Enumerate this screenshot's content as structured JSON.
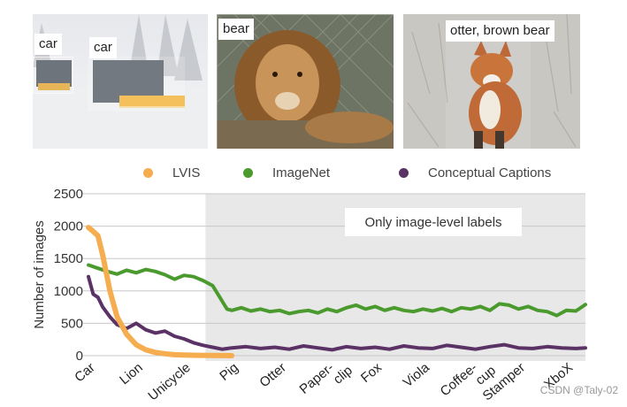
{
  "images": [
    {
      "id": "car",
      "labels": [
        "car",
        "car"
      ]
    },
    {
      "id": "bear",
      "labels": [
        "bear"
      ]
    },
    {
      "id": "otter",
      "labels": [
        "otter, brown bear"
      ]
    }
  ],
  "legend": [
    {
      "label": "LVIS",
      "color": "#f6ad50"
    },
    {
      "label": "ImageNet",
      "color": "#4a9a2e"
    },
    {
      "label": "Conceptual Captions",
      "color": "#5a3266"
    }
  ],
  "chart_data": {
    "type": "line",
    "ylabel": "Number of images",
    "ylim": [
      0,
      2500
    ],
    "yticks": [
      0,
      500,
      1000,
      1500,
      2000,
      2500
    ],
    "categories": [
      "Car",
      "Lion",
      "Unicycle",
      "Pig",
      "Otter",
      "Paper-\nclip",
      "Fox",
      "Viola",
      "Coffee-\ncup",
      "Stamper",
      "XboX"
    ],
    "shaded_region": {
      "from_category": "Pig",
      "label": "Only image-level labels",
      "color": "#e8e8e8"
    },
    "grid": true,
    "series": [
      {
        "name": "LVIS",
        "color": "#f6ad50",
        "x": [
          0,
          0.1,
          0.2,
          0.3,
          0.45,
          0.6,
          0.8,
          1.0,
          1.2,
          1.4,
          1.6,
          1.8,
          2.0,
          2.3,
          2.6,
          2.9,
          3.0
        ],
        "y": [
          1980,
          1920,
          1850,
          1550,
          1000,
          600,
          330,
          170,
          90,
          50,
          30,
          15,
          10,
          5,
          3,
          1,
          0
        ]
      },
      {
        "name": "ImageNet",
        "color": "#4a9a2e",
        "x": [
          0,
          0.2,
          0.4,
          0.6,
          0.8,
          1.0,
          1.2,
          1.4,
          1.6,
          1.8,
          2.0,
          2.2,
          2.4,
          2.6,
          2.75,
          2.9,
          3.0,
          3.2,
          3.4,
          3.6,
          3.8,
          4.0,
          4.2,
          4.4,
          4.6,
          4.8,
          5.0,
          5.2,
          5.4,
          5.6,
          5.8,
          6.0,
          6.2,
          6.4,
          6.6,
          6.8,
          7.0,
          7.2,
          7.4,
          7.6,
          7.8,
          8.0,
          8.2,
          8.4,
          8.6,
          8.8,
          9.0,
          9.2,
          9.4,
          9.6,
          9.8,
          10.0,
          10.2,
          10.4
        ],
        "y": [
          1400,
          1350,
          1300,
          1260,
          1320,
          1280,
          1330,
          1300,
          1250,
          1180,
          1240,
          1220,
          1160,
          1080,
          900,
          720,
          700,
          740,
          690,
          720,
          680,
          700,
          650,
          680,
          700,
          660,
          720,
          680,
          740,
          780,
          720,
          760,
          700,
          740,
          700,
          680,
          720,
          690,
          730,
          680,
          740,
          720,
          760,
          700,
          800,
          780,
          720,
          760,
          700,
          680,
          620,
          700,
          690,
          790
        ]
      },
      {
        "name": "Conceptual Captions",
        "color": "#5a3266",
        "x": [
          0,
          0.1,
          0.2,
          0.3,
          0.45,
          0.6,
          0.8,
          1.0,
          1.2,
          1.4,
          1.6,
          1.8,
          2.0,
          2.2,
          2.4,
          2.6,
          2.8,
          3.0,
          3.3,
          3.6,
          3.9,
          4.2,
          4.5,
          4.8,
          5.1,
          5.4,
          5.7,
          6.0,
          6.3,
          6.6,
          6.9,
          7.2,
          7.5,
          7.8,
          8.1,
          8.4,
          8.7,
          9.0,
          9.3,
          9.6,
          9.9,
          10.2,
          10.4
        ],
        "y": [
          1220,
          950,
          900,
          750,
          600,
          480,
          420,
          500,
          400,
          350,
          380,
          300,
          260,
          200,
          160,
          130,
          100,
          120,
          140,
          110,
          130,
          100,
          150,
          120,
          90,
          140,
          110,
          130,
          100,
          150,
          120,
          110,
          160,
          130,
          100,
          140,
          170,
          120,
          110,
          140,
          120,
          110,
          120
        ]
      }
    ]
  },
  "chart_overlay_label": "Only image-level labels",
  "watermark": "CSDN @Taly-02"
}
